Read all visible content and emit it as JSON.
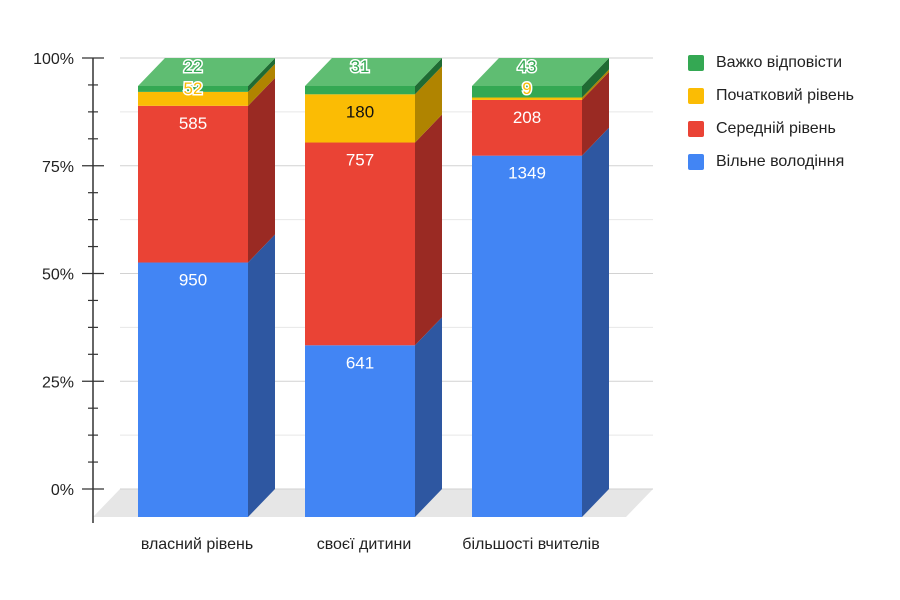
{
  "chart_data": {
    "type": "bar",
    "stacked": "percent",
    "style": "3d",
    "title": "",
    "xlabel": "",
    "ylabel": "",
    "ylim": [
      0,
      100
    ],
    "y_ticks": [
      "0%",
      "25%",
      "50%",
      "75%",
      "100%"
    ],
    "categories": [
      "власний рівень",
      "своєї дитини",
      "більшості вчителів"
    ],
    "series": [
      {
        "name": "Вільне володіння",
        "values": [
          950,
          641,
          1349
        ],
        "color": "#4285f4",
        "side_color": "#2e57a1",
        "label_color": "#ffffff"
      },
      {
        "name": "Середній рівень",
        "values": [
          585,
          757,
          208
        ],
        "color": "#ea4335",
        "side_color": "#9a2a23",
        "label_color": "#ffffff"
      },
      {
        "name": "Початковий рівень",
        "values": [
          52,
          180,
          9
        ],
        "color": "#fbbc04",
        "side_color": "#b08400",
        "label_color": "#111111",
        "outside_label_color": "#fbbc04"
      },
      {
        "name": "Важко відповісти",
        "values": [
          22,
          31,
          43
        ],
        "color": "#34a853",
        "side_color": "#1f6b33",
        "top_color": "#5fbd72",
        "label_color": "#ffffff",
        "outside_label_color": "#34a853"
      }
    ],
    "legend_position": "right",
    "grid": true
  }
}
